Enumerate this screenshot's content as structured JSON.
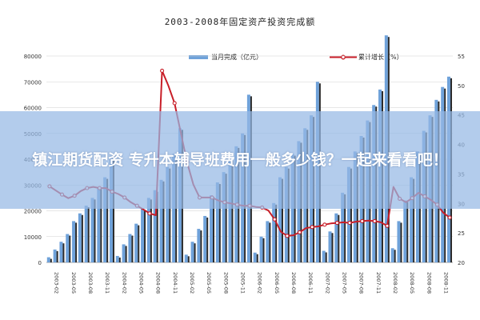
{
  "chart_data": {
    "type": "bar+line",
    "title": "2003-2008年固定资产投资完成额",
    "legend": {
      "placement": "top",
      "bar_label": "当月完成（亿元）",
      "line_label": "累计增长（%）"
    },
    "colors": {
      "bar": "#6fa2da",
      "bar_shadow": "#2a2a2a",
      "line": "#c81e28",
      "grid": "#d0d0d0"
    },
    "y_left": {
      "ylim": [
        0,
        80000
      ],
      "ticks": [
        "0",
        "10000",
        "20000",
        "30000",
        "40000",
        "50000",
        "60000",
        "70000",
        "80000"
      ]
    },
    "y_right": {
      "ylim": [
        20,
        55
      ],
      "ticks": [
        "20",
        "25",
        "30",
        "35",
        "40",
        "45",
        "50",
        "55"
      ]
    },
    "x_tick_labels": [
      "2003-02",
      "2003-05",
      "2003-08",
      "2003-11",
      "2004-02",
      "2004-05",
      "2004-08",
      "2004-11",
      "2005-02",
      "2005-05",
      "2005-08",
      "2005-11",
      "2006-02",
      "2006-05",
      "2006-08",
      "2006-11",
      "2007-02",
      "2007-05",
      "2007-08",
      "2007-11",
      "2008-02",
      "2008-05",
      "2008-08",
      "2008-11"
    ],
    "categories": [
      "2003-02",
      "2003-03",
      "2003-04",
      "2003-05",
      "2003-06",
      "2003-07",
      "2003-08",
      "2003-09",
      "2003-10",
      "2003-11",
      "2003-12",
      "2004-02",
      "2004-03",
      "2004-04",
      "2004-05",
      "2004-06",
      "2004-07",
      "2004-08",
      "2004-09",
      "2004-10",
      "2004-11",
      "2004-12",
      "2005-02",
      "2005-03",
      "2005-04",
      "2005-05",
      "2005-06",
      "2005-07",
      "2005-08",
      "2005-09",
      "2005-10",
      "2005-11",
      "2005-12",
      "2006-02",
      "2006-03",
      "2006-04",
      "2006-05",
      "2006-06",
      "2006-07",
      "2006-08",
      "2006-09",
      "2006-10",
      "2006-11",
      "2006-12",
      "2007-02",
      "2007-03",
      "2007-04",
      "2007-05",
      "2007-06",
      "2007-07",
      "2007-08",
      "2007-09",
      "2007-10",
      "2007-11",
      "2007-12",
      "2008-02",
      "2008-03",
      "2008-04",
      "2008-05",
      "2008-06",
      "2008-07",
      "2008-08",
      "2008-09",
      "2008-10",
      "2008-11"
    ],
    "bar_values": [
      2000,
      5000,
      8000,
      11000,
      16000,
      19000,
      22000,
      25000,
      29000,
      33000,
      41000,
      2500,
      7000,
      11000,
      15000,
      21000,
      25000,
      28000,
      32000,
      37000,
      42000,
      52000,
      3000,
      8000,
      13000,
      18000,
      26000,
      31000,
      35000,
      40000,
      45000,
      50000,
      65000,
      3800,
      10000,
      16000,
      23000,
      33000,
      37000,
      42000,
      47000,
      52000,
      57000,
      70000,
      4500,
      12000,
      19000,
      27000,
      37000,
      43000,
      49000,
      55000,
      61000,
      67000,
      88000,
      5500,
      16000,
      24000,
      33000,
      43000,
      51000,
      57000,
      63000,
      68000,
      72000
    ],
    "line_values": [
      32.9,
      32.2,
      31.5,
      30.9,
      31.3,
      32.1,
      32.6,
      32.8,
      32.6,
      32.6,
      32.0,
      31.6,
      31.0,
      30.2,
      29.6,
      29.0,
      28.3,
      28.0,
      52.5,
      50.0,
      47.0,
      42.0,
      37.0,
      33.2,
      31.0,
      31.0,
      31.0,
      30.5,
      30.2,
      30.0,
      29.8,
      29.6,
      29.6,
      29.4,
      29.3,
      28.8,
      27.3,
      25.2,
      24.5,
      24.6,
      25.1,
      25.8,
      26.0,
      26.1,
      26.4,
      26.6,
      26.7,
      26.8,
      26.7,
      26.9,
      27.0,
      27.1,
      27.0,
      26.8,
      26.2,
      32.8,
      30.8,
      30.2,
      30.9,
      31.8,
      31.2,
      30.6,
      29.8,
      28.4,
      27.6
    ]
  },
  "watermark": {
    "text": "镇江期货配资 专升本辅导班费用一般多少钱？一起来看看吧！"
  }
}
